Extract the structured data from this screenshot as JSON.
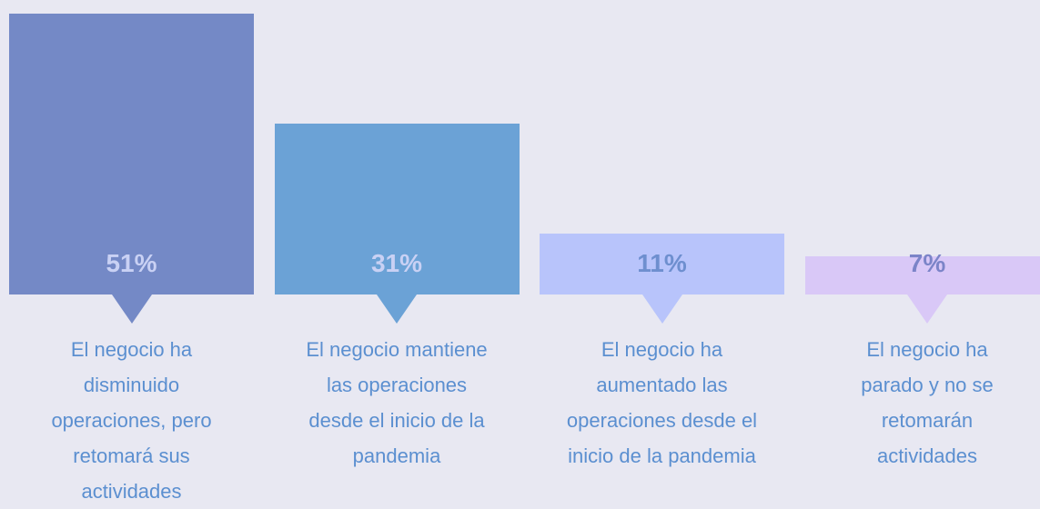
{
  "chart_data": {
    "type": "bar",
    "categories": [
      "El negocio ha\ndisminuido\noperaciones, pero\nretomará sus\nactividades",
      "El negocio mantiene\nlas operaciones\ndesde el inicio de la\npandemia",
      "El negocio ha\naumentado las\noperaciones desde el\ninicio de la pandemia",
      "El negocio ha\nparado y no se\nretomarán\nactividades"
    ],
    "values": [
      51,
      31,
      11,
      7
    ],
    "value_labels": [
      "51%",
      "31%",
      "11%",
      "7%"
    ],
    "colors": [
      "#7489c6",
      "#6ba2d6",
      "#b8c4fb",
      "#d9c8f7"
    ],
    "label_colors": [
      "#c9d1f4",
      "#c9d1f4",
      "#6e8fcf",
      "#7b84c8"
    ],
    "ylim": [
      0,
      51
    ]
  }
}
